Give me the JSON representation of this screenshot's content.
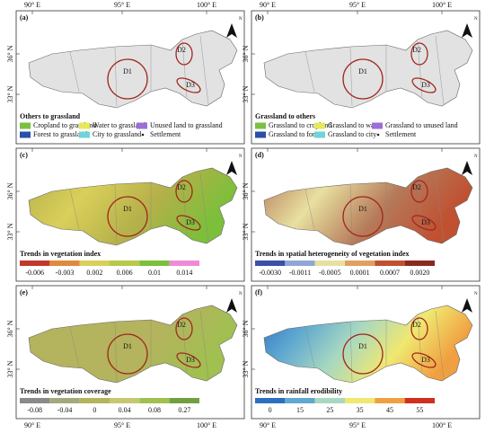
{
  "axes": {
    "top": [
      "90° E",
      "95° E",
      "100° E"
    ],
    "bottom": [
      "90° E",
      "95° E",
      "100° E"
    ],
    "left": [
      "36° N",
      "33° N"
    ]
  },
  "north": "N",
  "regions": [
    "D1",
    "D2",
    "D3"
  ],
  "panels": [
    {
      "label": "(a)",
      "map_fill": "#e2e2e2",
      "legend_title": "Others to grassland",
      "legend_items": [
        {
          "label": "Cropland to grassland",
          "color": "#7ac143"
        },
        {
          "label": "Water to grassland",
          "color": "#e6e85a"
        },
        {
          "label": "Unused land to grassland",
          "color": "#9b6fd6"
        },
        {
          "label": "Forest to grassland",
          "color": "#2b4ea8"
        },
        {
          "label": "City to grassland",
          "color": "#6fd3d8"
        },
        {
          "label": "Settlement",
          "color": "#222222"
        }
      ]
    },
    {
      "label": "(b)",
      "map_fill": "#e2e2e2",
      "legend_title": "Grassland to  others",
      "legend_items": [
        {
          "label": "Grassland to cropland",
          "color": "#7ac143"
        },
        {
          "label": "Grassland to water",
          "color": "#e6e85a"
        },
        {
          "label": "Grassland to unused land",
          "color": "#9b6fd6"
        },
        {
          "label": "Grassland to forest",
          "color": "#2b4ea8"
        },
        {
          "label": "Grassland to city",
          "color": "#6fd3d8"
        },
        {
          "label": "Settlement",
          "color": "#222222"
        }
      ]
    },
    {
      "label": "(c)",
      "map_fill": "#b5b04a",
      "legend_title": "Trends in vegetation index",
      "colorbar": [
        "#c0392b",
        "#e08a3c",
        "#d9cf5a",
        "#b8c94a",
        "#7cbf3a",
        "#f08ad8"
      ],
      "colorbar_ticks": [
        "-0.006",
        "-0.003",
        "0.002",
        "0.006",
        "0.01",
        "0.014"
      ]
    },
    {
      "label": "(d)",
      "map_fill": "#b57a5a",
      "legend_title": "Trends in spatial heterogeneity of vegetation index",
      "colorbar": [
        "#3a4fa8",
        "#8fa7d6",
        "#e8e0a0",
        "#e0a060",
        "#c05030",
        "#8a2a20"
      ],
      "colorbar_ticks": [
        "-0.0030",
        "-0.0011",
        "-0.0005",
        "0.0001",
        "0.0007",
        "0.0020"
      ]
    },
    {
      "label": "(e)",
      "map_fill": "#b4b35e",
      "legend_title": "Trends in vegetation coverage",
      "colorbar": [
        "#8a8a8a",
        "#a5a87a",
        "#b4b35e",
        "#c5c870",
        "#a0c050",
        "#70a040"
      ],
      "colorbar_ticks": [
        "-0.08",
        "-0.04",
        "0",
        "0.04",
        "0.08",
        "0.27"
      ]
    },
    {
      "label": "(f)",
      "map_fill": "#5fa8c8",
      "legend_title": "Trends in rainfall erodibility",
      "colorbar": [
        "#2b70c0",
        "#5fa8d0",
        "#a8d8c0",
        "#f0e870",
        "#f0a040",
        "#d03020"
      ],
      "colorbar_ticks": [
        "0",
        "15",
        "25",
        "35",
        "45",
        "55"
      ]
    }
  ]
}
